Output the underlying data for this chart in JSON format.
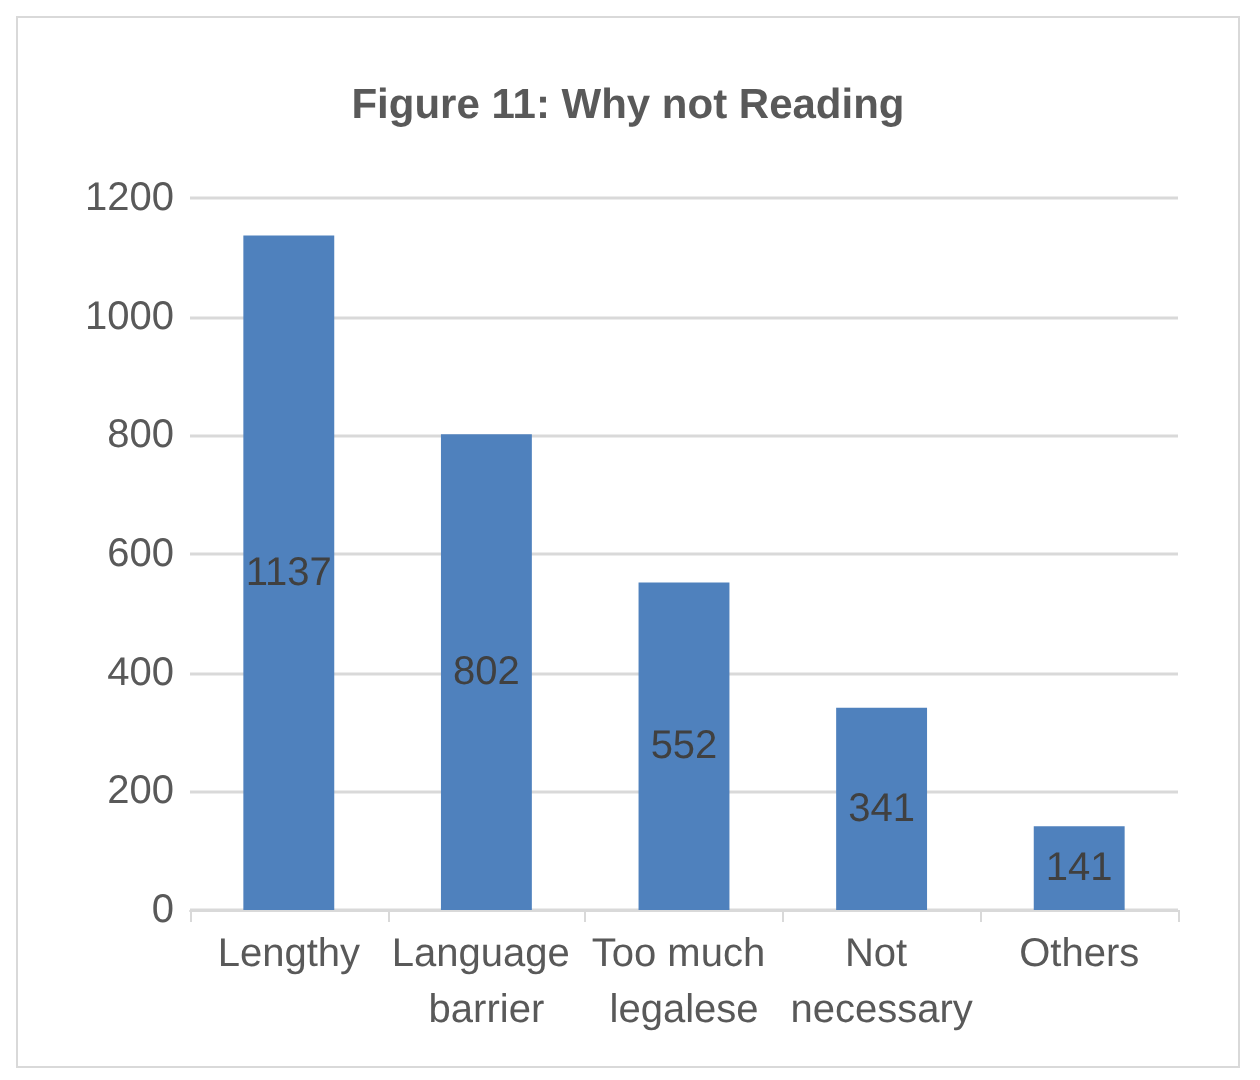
{
  "chart_data": {
    "type": "bar",
    "title": "Figure 11: Why not Reading",
    "categories": [
      "Lengthy",
      "Language barrier",
      "Too much legalese",
      "Not necessary",
      "Others"
    ],
    "values": [
      1137,
      802,
      552,
      341,
      141
    ],
    "color": "#4f81bd",
    "ylim": [
      0,
      1200
    ],
    "yticks": [
      0,
      200,
      400,
      600,
      800,
      1000,
      1200
    ],
    "grid": "y",
    "data_labels": true
  }
}
